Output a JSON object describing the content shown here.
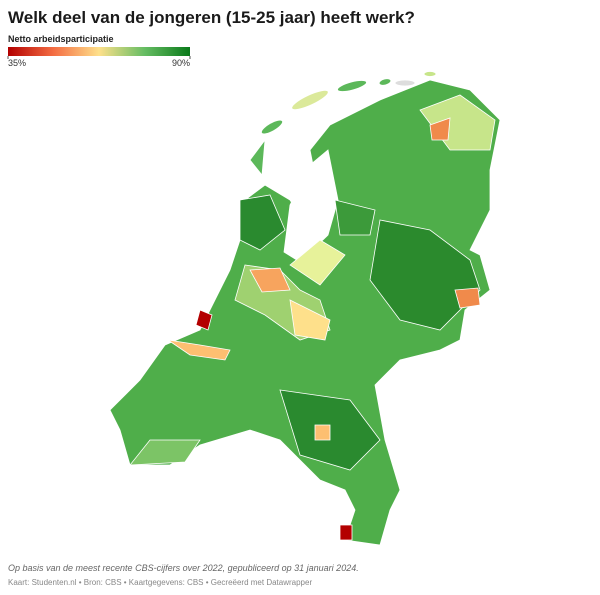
{
  "header": {
    "title": "Welk deel van de jongeren (15-25 jaar) heeft werk?"
  },
  "legend": {
    "title": "Netto arbeidsparticipatie",
    "min": {
      "value": 35,
      "label": "35%"
    },
    "max": {
      "value": 90,
      "label": "90%"
    }
  },
  "footer": {
    "note": "Op basis van de meest recente CBS-cijfers over 2022, gepubliceerd op 31 januari 2024.",
    "source": "Kaart: Studenten.nl • Bron: CBS • Kaartgegevens: CBS • Gecreëerd met Datawrapper"
  }
}
